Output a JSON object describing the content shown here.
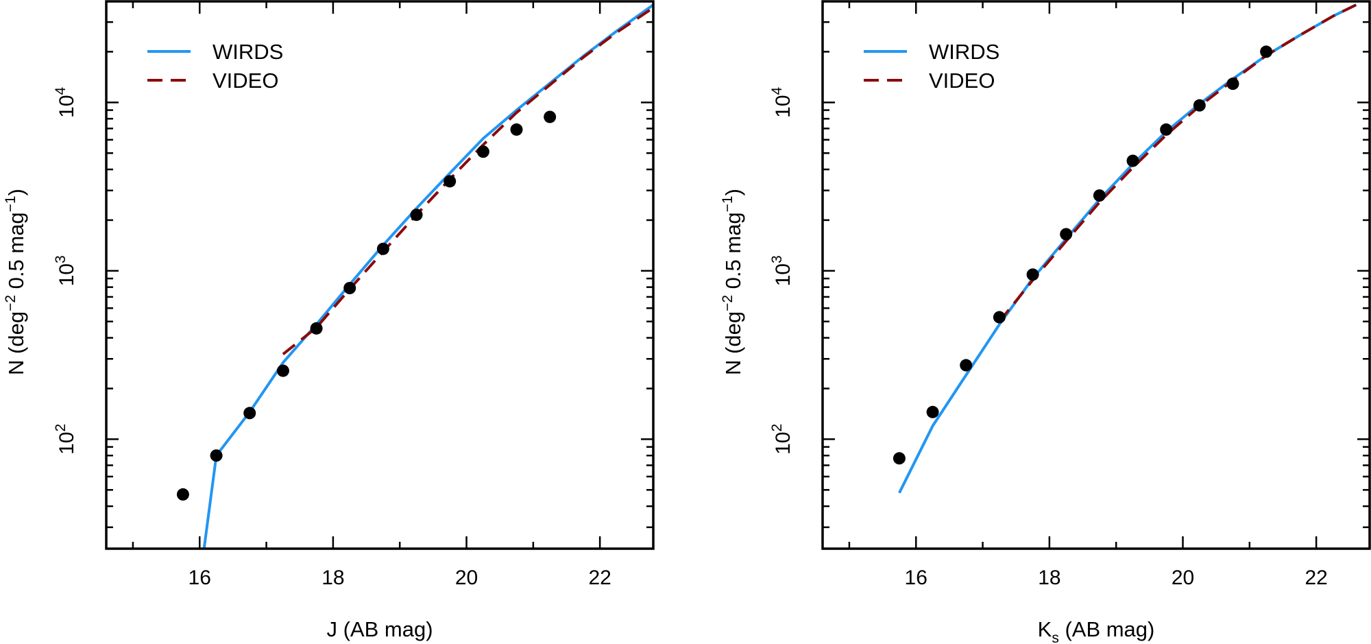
{
  "chart_data": [
    {
      "type": "line",
      "panel": "left",
      "xlabel": "J (AB mag)",
      "ylabel_parts": [
        "N (deg",
        "−2",
        " 0.5 mag",
        "−1",
        ")"
      ],
      "xlim": [
        14.6,
        22.8
      ],
      "ylim_log10": [
        1.35,
        4.6
      ],
      "xticks": [
        "16",
        "18",
        "20",
        "22"
      ],
      "yticks": [
        {
          "base": "10",
          "exp": "2",
          "log": 2
        },
        {
          "base": "10",
          "exp": "3",
          "log": 3
        },
        {
          "base": "10",
          "exp": "4",
          "log": 4
        }
      ],
      "legend": {
        "position": "top-left",
        "entries": [
          "WIRDS",
          "VIDEO"
        ]
      },
      "series": [
        {
          "name": "WIRDS",
          "style": "solid",
          "color": "#2196f3",
          "x": [
            16.05,
            16.25,
            16.75,
            17.25,
            17.75,
            18.25,
            18.75,
            19.25,
            19.75,
            20.25,
            20.75,
            21.25,
            21.75,
            22.25,
            22.8
          ],
          "y": [
            20,
            80,
            145,
            285,
            480,
            830,
            1420,
            2350,
            3800,
            6100,
            9000,
            13000,
            18800,
            26500,
            38000
          ]
        },
        {
          "name": "VIDEO",
          "style": "dashed",
          "color": "#8b0a0a",
          "x": [
            17.25,
            17.75,
            18.25,
            18.75,
            19.25,
            19.75,
            20.25,
            20.75,
            21.25,
            21.75,
            22.25,
            22.8
          ],
          "y": [
            320,
            460,
            780,
            1300,
            2150,
            3500,
            5600,
            8700,
            12700,
            18500,
            26000,
            36500
          ]
        },
        {
          "name": "data",
          "style": "points",
          "color": "#000000",
          "x": [
            15.75,
            16.25,
            16.75,
            17.25,
            17.75,
            18.25,
            18.75,
            19.25,
            19.75,
            20.25,
            20.75,
            21.25
          ],
          "y": [
            47,
            80,
            143,
            255,
            455,
            790,
            1350,
            2150,
            3400,
            5100,
            6900,
            8200
          ]
        }
      ]
    },
    {
      "type": "line",
      "panel": "right",
      "xlabel_parts": [
        "K",
        "s",
        " (AB mag)"
      ],
      "ylabel_parts": [
        "N (deg",
        "−2",
        " 0.5 mag",
        "−1",
        ")"
      ],
      "xlim": [
        14.6,
        22.8
      ],
      "ylim_log10": [
        1.35,
        4.6
      ],
      "xticks": [
        "16",
        "18",
        "20",
        "22"
      ],
      "yticks": [
        {
          "base": "10",
          "exp": "2",
          "log": 2
        },
        {
          "base": "10",
          "exp": "3",
          "log": 3
        },
        {
          "base": "10",
          "exp": "4",
          "log": 4
        }
      ],
      "legend": {
        "position": "top-left",
        "entries": [
          "WIRDS",
          "VIDEO"
        ]
      },
      "series": [
        {
          "name": "WIRDS",
          "style": "solid",
          "color": "#2196f3",
          "x": [
            15.75,
            16.25,
            16.75,
            17.25,
            17.75,
            18.25,
            18.75,
            19.25,
            19.75,
            20.25,
            20.75,
            21.25,
            21.75,
            22.25,
            22.6
          ],
          "y": [
            48,
            120,
            240,
            480,
            900,
            1550,
            2650,
            4300,
            6700,
            9800,
            13800,
            19000,
            25000,
            32500,
            38000
          ]
        },
        {
          "name": "VIDEO",
          "style": "dashed",
          "color": "#8b0a0a",
          "x": [
            17.25,
            17.75,
            18.25,
            18.75,
            19.25,
            19.75,
            20.25,
            20.75,
            21.25,
            21.75,
            22.25,
            22.6
          ],
          "y": [
            500,
            880,
            1500,
            2550,
            4100,
            6400,
            9500,
            13500,
            19000,
            25000,
            32500,
            38000
          ]
        },
        {
          "name": "data",
          "style": "points",
          "color": "#000000",
          "x": [
            15.75,
            16.25,
            16.75,
            17.25,
            17.75,
            18.25,
            18.75,
            19.25,
            19.75,
            20.25,
            20.75,
            21.25
          ],
          "y": [
            77,
            145,
            275,
            530,
            950,
            1650,
            2800,
            4500,
            6900,
            9600,
            12900,
            20000
          ]
        }
      ]
    }
  ]
}
